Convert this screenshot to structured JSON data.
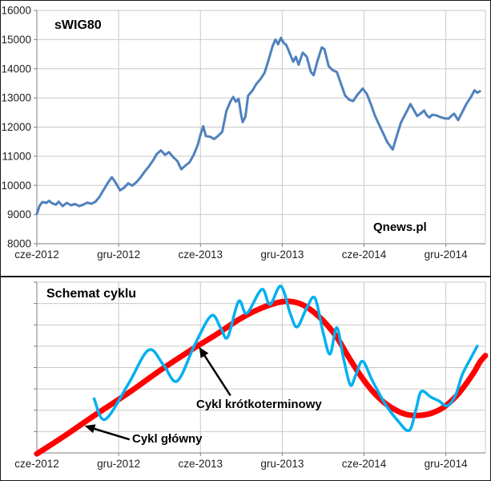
{
  "colors": {
    "grid": "#c9c9c9",
    "axis": "#7f7f7f",
    "swig_line": "#4F81BD",
    "main_cycle": "#FF0000",
    "short_cycle": "#00B0F0",
    "annotation_arrow": "#000000",
    "panel_border": "#1a1a1a"
  },
  "chart_data": [
    {
      "type": "line",
      "title": "sWIG80",
      "watermark": "Qnews.pl",
      "x_tick_labels": [
        "cze-2012",
        "gru-2012",
        "cze-2013",
        "gru-2013",
        "cze-2014",
        "gru-2014"
      ],
      "x_tick_pos": [
        0,
        6,
        12,
        18,
        24,
        30
      ],
      "x_unit": "months since 2012-06",
      "xlim": [
        0,
        32.9
      ],
      "ylim": [
        8000,
        16000
      ],
      "y_ticks": [
        8000,
        9000,
        10000,
        11000,
        12000,
        13000,
        14000,
        15000,
        16000
      ],
      "y_tick_labels": true,
      "grid": true,
      "series": [
        {
          "name": "sWIG80",
          "color": "#4F81BD",
          "width": 3,
          "smooth": false,
          "points": [
            [
              0,
              9020
            ],
            [
              0.2,
              9300
            ],
            [
              0.4,
              9430
            ],
            [
              0.7,
              9400
            ],
            [
              0.9,
              9470
            ],
            [
              1.1,
              9390
            ],
            [
              1.4,
              9340
            ],
            [
              1.6,
              9440
            ],
            [
              1.9,
              9290
            ],
            [
              2.2,
              9400
            ],
            [
              2.5,
              9320
            ],
            [
              2.8,
              9360
            ],
            [
              3.1,
              9290
            ],
            [
              3.4,
              9340
            ],
            [
              3.7,
              9410
            ],
            [
              4,
              9370
            ],
            [
              4.3,
              9440
            ],
            [
              4.6,
              9610
            ],
            [
              4.9,
              9850
            ],
            [
              5.2,
              10080
            ],
            [
              5.5,
              10280
            ],
            [
              5.7,
              10150
            ],
            [
              5.9,
              10000
            ],
            [
              6.1,
              9830
            ],
            [
              6.4,
              9920
            ],
            [
              6.7,
              10070
            ],
            [
              7,
              9990
            ],
            [
              7.3,
              10110
            ],
            [
              7.6,
              10270
            ],
            [
              7.9,
              10470
            ],
            [
              8.2,
              10640
            ],
            [
              8.5,
              10840
            ],
            [
              8.8,
              11080
            ],
            [
              9.1,
              11200
            ],
            [
              9.4,
              11050
            ],
            [
              9.7,
              11140
            ],
            [
              10,
              10970
            ],
            [
              10.3,
              10840
            ],
            [
              10.6,
              10550
            ],
            [
              10.9,
              10680
            ],
            [
              11.2,
              10790
            ],
            [
              11.5,
              11040
            ],
            [
              11.8,
              11390
            ],
            [
              12,
              11740
            ],
            [
              12.2,
              12030
            ],
            [
              12.4,
              11690
            ],
            [
              12.7,
              11670
            ],
            [
              13,
              11590
            ],
            [
              13.3,
              11700
            ],
            [
              13.6,
              11840
            ],
            [
              13.9,
              12550
            ],
            [
              14.2,
              12880
            ],
            [
              14.4,
              13030
            ],
            [
              14.6,
              12870
            ],
            [
              14.8,
              12970
            ],
            [
              15,
              12380
            ],
            [
              15.1,
              12170
            ],
            [
              15.3,
              12360
            ],
            [
              15.5,
              13080
            ],
            [
              15.8,
              13240
            ],
            [
              16.1,
              13480
            ],
            [
              16.4,
              13640
            ],
            [
              16.7,
              13860
            ],
            [
              17,
              14310
            ],
            [
              17.3,
              14790
            ],
            [
              17.5,
              15000
            ],
            [
              17.7,
              14840
            ],
            [
              17.9,
              15060
            ],
            [
              18.1,
              14890
            ],
            [
              18.3,
              14810
            ],
            [
              18.5,
              14590
            ],
            [
              18.8,
              14240
            ],
            [
              19,
              14410
            ],
            [
              19.2,
              14140
            ],
            [
              19.5,
              14550
            ],
            [
              19.8,
              14410
            ],
            [
              20.1,
              13890
            ],
            [
              20.3,
              13780
            ],
            [
              20.6,
              14290
            ],
            [
              20.9,
              14730
            ],
            [
              21.1,
              14670
            ],
            [
              21.4,
              14090
            ],
            [
              21.7,
              13950
            ],
            [
              22,
              13890
            ],
            [
              22.3,
              13490
            ],
            [
              22.6,
              13090
            ],
            [
              22.9,
              12940
            ],
            [
              23.2,
              12890
            ],
            [
              23.5,
              13100
            ],
            [
              23.9,
              13320
            ],
            [
              24.2,
              13140
            ],
            [
              24.5,
              12790
            ],
            [
              24.8,
              12390
            ],
            [
              25.1,
              12090
            ],
            [
              25.4,
              11790
            ],
            [
              25.7,
              11490
            ],
            [
              26,
              11290
            ],
            [
              26.1,
              11230
            ],
            [
              26.4,
              11700
            ],
            [
              26.7,
              12150
            ],
            [
              27,
              12420
            ],
            [
              27.2,
              12600
            ],
            [
              27.4,
              12790
            ],
            [
              27.6,
              12620
            ],
            [
              27.9,
              12380
            ],
            [
              28.2,
              12480
            ],
            [
              28.4,
              12570
            ],
            [
              28.6,
              12400
            ],
            [
              28.8,
              12330
            ],
            [
              29,
              12420
            ],
            [
              29.3,
              12400
            ],
            [
              29.6,
              12340
            ],
            [
              29.9,
              12300
            ],
            [
              30.2,
              12290
            ],
            [
              30.4,
              12380
            ],
            [
              30.6,
              12460
            ],
            [
              30.9,
              12240
            ],
            [
              31.1,
              12420
            ],
            [
              31.5,
              12790
            ],
            [
              31.8,
              13000
            ],
            [
              32.1,
              13260
            ],
            [
              32.3,
              13180
            ],
            [
              32.5,
              13230
            ]
          ]
        }
      ]
    },
    {
      "type": "line",
      "title": "Schemat cyklu",
      "x_tick_labels": [
        "cze-2012",
        "gru-2012",
        "cze-2013",
        "gru-2013",
        "cze-2014",
        "gru-2014"
      ],
      "x_tick_pos": [
        0,
        6,
        12,
        18,
        24,
        30
      ],
      "x_unit": "months since 2012-06",
      "xlim": [
        0,
        32.9
      ],
      "ylim": [
        0,
        100
      ],
      "y_ticks": [
        0,
        12.5,
        25,
        37.5,
        50,
        62.5,
        75,
        87.5,
        100
      ],
      "y_tick_labels": false,
      "grid": true,
      "series": [
        {
          "name": "Cykl główny",
          "color": "#FF0000",
          "width": 7,
          "smooth": true,
          "points": [
            [
              0,
              -0.5
            ],
            [
              2,
              9.8
            ],
            [
              4.3,
              22.4
            ],
            [
              6.7,
              35
            ],
            [
              9,
              48.1
            ],
            [
              11.4,
              60.7
            ],
            [
              13.2,
              69.6
            ],
            [
              14.9,
              78.5
            ],
            [
              16.4,
              84.6
            ],
            [
              17.6,
              87.9
            ],
            [
              18.4,
              88.8
            ],
            [
              19.3,
              87.4
            ],
            [
              20.2,
              83.2
            ],
            [
              21.1,
              76.6
            ],
            [
              22,
              67.8
            ],
            [
              22.8,
              57
            ],
            [
              23.7,
              45.8
            ],
            [
              24.6,
              36.4
            ],
            [
              25.5,
              29.4
            ],
            [
              26.4,
              24.8
            ],
            [
              27.2,
              22.4
            ],
            [
              28.1,
              22
            ],
            [
              29,
              23.4
            ],
            [
              29.9,
              27.1
            ],
            [
              30.8,
              33.6
            ],
            [
              31.5,
              40.7
            ],
            [
              32.1,
              47.7
            ],
            [
              32.5,
              53.3
            ],
            [
              32.9,
              57
            ]
          ]
        },
        {
          "name": "Cykl krótkoterminowy",
          "color": "#00B0F0",
          "width": 3.5,
          "smooth": true,
          "points": [
            [
              4.2,
              31.8
            ],
            [
              5,
              19.6
            ],
            [
              6.7,
              40.2
            ],
            [
              8.2,
              60.3
            ],
            [
              9.3,
              51.4
            ],
            [
              10.3,
              42.1
            ],
            [
              11.6,
              63.6
            ],
            [
              12.8,
              80.4
            ],
            [
              13.5,
              72.9
            ],
            [
              14,
              67.8
            ],
            [
              14.8,
              88.8
            ],
            [
              15.4,
              81.8
            ],
            [
              16.5,
              95.8
            ],
            [
              17.1,
              86.9
            ],
            [
              17.9,
              97.7
            ],
            [
              18.6,
              81.3
            ],
            [
              19.1,
              73.8
            ],
            [
              19.8,
              85
            ],
            [
              20.4,
              90.7
            ],
            [
              21,
              70.6
            ],
            [
              21.5,
              57.9
            ],
            [
              22,
              73.4
            ],
            [
              22.5,
              55.1
            ],
            [
              23,
              39.7
            ],
            [
              23.4,
              45.8
            ],
            [
              23.9,
              53.7
            ],
            [
              24.6,
              42.5
            ],
            [
              25.5,
              29.4
            ],
            [
              26.4,
              19.6
            ],
            [
              27.3,
              13.1
            ],
            [
              27.8,
              25.2
            ],
            [
              28.2,
              36
            ],
            [
              28.9,
              32.7
            ],
            [
              29.5,
              30.4
            ],
            [
              30.1,
              27.6
            ],
            [
              30.7,
              33.6
            ],
            [
              31.2,
              45.8
            ],
            [
              31.8,
              55.1
            ],
            [
              32.3,
              62.6
            ]
          ]
        }
      ],
      "annotations": [
        {
          "text": "Cykl krótkoterminowy",
          "arrow": {
            "from": [
              14.2,
              33.6
            ],
            "to": [
              11.9,
              62
            ]
          }
        },
        {
          "text": "Cykl główny",
          "arrow": {
            "from": [
              6.8,
              7.9
            ],
            "to": [
              3.5,
              15.9
            ]
          }
        }
      ]
    }
  ]
}
